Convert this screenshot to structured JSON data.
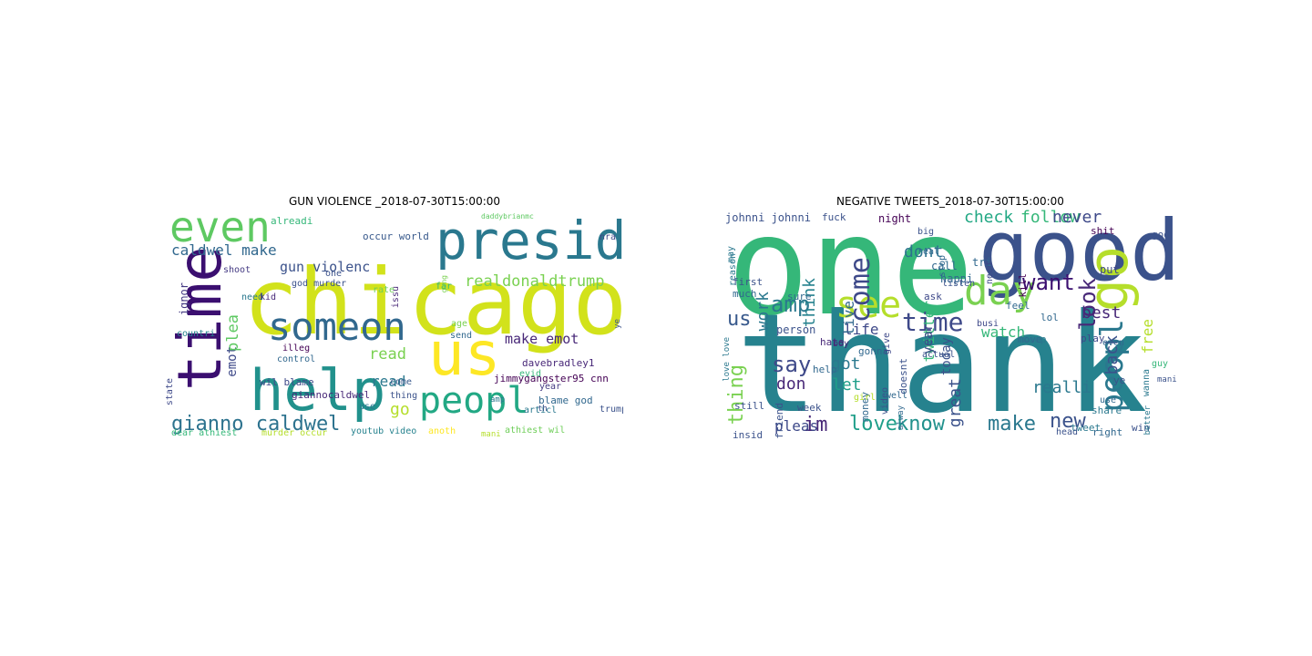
{
  "left": {
    "title": "GUN VIOLENCE _2018-07-30T15:00:00",
    "words": [
      {
        "t": "chicago",
        "c": "#d2e21b"
      },
      {
        "t": "presid",
        "c": "#2a788e"
      },
      {
        "t": "even",
        "c": "#5ec962"
      },
      {
        "t": "time",
        "c": "#3b0f70"
      },
      {
        "t": "someon",
        "c": "#31688e"
      },
      {
        "t": "help",
        "c": "#21918c"
      },
      {
        "t": "us",
        "c": "#fde725"
      },
      {
        "t": "peopl",
        "c": "#22a884"
      },
      {
        "t": "gianno caldwel",
        "c": "#2c728e"
      },
      {
        "t": "caldwel make",
        "c": "#31688e"
      },
      {
        "t": "gun violenc",
        "c": "#3b528b"
      },
      {
        "t": "realdonaldtrump",
        "c": "#7ad151"
      },
      {
        "t": "make emot",
        "c": "#482878"
      },
      {
        "t": "emot",
        "c": "#3e4989"
      },
      {
        "t": "plea",
        "c": "#5ec962"
      },
      {
        "t": "read",
        "c": "#7ad151"
      },
      {
        "t": "read",
        "c": "#2a788e"
      },
      {
        "t": "go",
        "c": "#b5de2b"
      },
      {
        "t": "ignor",
        "c": "#443a83"
      },
      {
        "t": "alreadi",
        "c": "#35b779"
      },
      {
        "t": "occur world",
        "c": "#38598c"
      },
      {
        "t": "nra",
        "c": "#3e4989"
      },
      {
        "t": "davebradley1",
        "c": "#482878"
      },
      {
        "t": "jimmygangster95 cnn",
        "c": "#440154"
      },
      {
        "t": "wil blame",
        "c": "#3e4989"
      },
      {
        "t": "giannocaldwel",
        "c": "#482878"
      },
      {
        "t": "blame god",
        "c": "#31688e"
      },
      {
        "t": "dear athiest",
        "c": "#35b779"
      },
      {
        "t": "murder occur",
        "c": "#b5de2b"
      },
      {
        "t": "youtub video",
        "c": "#26828e"
      },
      {
        "t": "anoth",
        "c": "#fde725"
      },
      {
        "t": "athiest wil",
        "c": "#6ece58"
      },
      {
        "t": "articl",
        "c": "#2a788e"
      },
      {
        "t": "trump",
        "c": "#3b528b"
      },
      {
        "t": "evid",
        "c": "#35b779"
      },
      {
        "t": "year",
        "c": "#443a83"
      },
      {
        "t": "come",
        "c": "#38598c"
      },
      {
        "t": "thing",
        "c": "#3b528b"
      },
      {
        "t": "send",
        "c": "#31688e"
      },
      {
        "t": "age",
        "c": "#7ad151"
      },
      {
        "t": "issu",
        "c": "#482878"
      },
      {
        "t": "far",
        "c": "#35b779"
      },
      {
        "t": "rate",
        "c": "#6ece58"
      },
      {
        "t": "god murder",
        "c": "#3b528b"
      },
      {
        "t": "need",
        "c": "#2a788e"
      },
      {
        "t": "one",
        "c": "#3b528b"
      },
      {
        "t": "shoot",
        "c": "#443a83"
      },
      {
        "t": "kid",
        "c": "#482878"
      },
      {
        "t": "countri",
        "c": "#26828e"
      },
      {
        "t": "illeg",
        "c": "#440154"
      },
      {
        "t": "control",
        "c": "#31688e"
      },
      {
        "t": "state",
        "c": "#3e4989"
      },
      {
        "t": "use",
        "c": "#2a788e"
      },
      {
        "t": "mani",
        "c": "#b5de2b"
      },
      {
        "t": "amp",
        "c": "#2a788e"
      },
      {
        "t": "th",
        "c": "#3b528b"
      },
      {
        "t": "ye",
        "c": "#3b528b"
      },
      {
        "t": "gang",
        "c": "#7ad151"
      },
      {
        "t": "daddybrianmc",
        "c": "#5ec962"
      }
    ]
  },
  "right": {
    "title": "NEGATIVE TWEETS_2018-07-30T15:00:00",
    "words": [
      {
        "t": "one",
        "c": "#35b779"
      },
      {
        "t": "thank",
        "c": "#26828e"
      },
      {
        "t": "good",
        "c": "#3b528b"
      },
      {
        "t": "go",
        "c": "#b5de2b"
      },
      {
        "t": "day",
        "c": "#7ad151"
      },
      {
        "t": "time",
        "c": "#3e4989"
      },
      {
        "t": "see",
        "c": "#b5de2b"
      },
      {
        "t": "peopl",
        "c": "#2a788e"
      },
      {
        "t": "come",
        "c": "#3e4989"
      },
      {
        "t": "want",
        "c": "#3b0f70"
      },
      {
        "t": "look",
        "c": "#482878"
      },
      {
        "t": "amp",
        "c": "#2a788e"
      },
      {
        "t": "us",
        "c": "#38598c"
      },
      {
        "t": "check",
        "c": "#22a884"
      },
      {
        "t": "follow",
        "c": "#35b779"
      },
      {
        "t": "never",
        "c": "#3e4989"
      },
      {
        "t": "love",
        "c": "#1f9e89"
      },
      {
        "t": "know",
        "c": "#21918c"
      },
      {
        "t": "make",
        "c": "#2a788e"
      },
      {
        "t": "new",
        "c": "#3b528b"
      },
      {
        "t": "im",
        "c": "#482878"
      },
      {
        "t": "say",
        "c": "#3e4989"
      },
      {
        "t": "pleas",
        "c": "#3e4989"
      },
      {
        "t": "thing",
        "c": "#7ad151"
      },
      {
        "t": "think",
        "c": "#26828e"
      },
      {
        "t": "twitter",
        "c": "#35b779"
      },
      {
        "t": "dont",
        "c": "#2c728e"
      },
      {
        "t": "watch",
        "c": "#35b779"
      },
      {
        "t": "best",
        "c": "#482878"
      },
      {
        "t": "free",
        "c": "#b5de2b"
      },
      {
        "t": "realli",
        "c": "#2a788e"
      },
      {
        "t": "back",
        "c": "#3b528b"
      },
      {
        "t": "great",
        "c": "#3b528b"
      },
      {
        "t": "got",
        "c": "#2a788e"
      },
      {
        "t": "let",
        "c": "#1f9e89"
      },
      {
        "t": "don",
        "c": "#482878"
      },
      {
        "t": "work",
        "c": "#2a788e"
      },
      {
        "t": "life",
        "c": "#3e4989"
      },
      {
        "t": "live",
        "c": "#31688e"
      },
      {
        "t": "today",
        "c": "#3b528b"
      },
      {
        "t": "year",
        "c": "#3e4989"
      },
      {
        "t": "person",
        "c": "#3b528b"
      },
      {
        "t": "happi",
        "c": "#31688e"
      },
      {
        "t": "put",
        "c": "#3e4989"
      },
      {
        "t": "tri",
        "c": "#31688e"
      },
      {
        "t": "call",
        "c": "#31688e"
      },
      {
        "t": "night",
        "c": "#440154"
      },
      {
        "t": "fuck",
        "c": "#3b528b"
      },
      {
        "t": "johnni johnni",
        "c": "#3b528b"
      },
      {
        "t": "keep",
        "c": "#2a788e"
      },
      {
        "t": "lol",
        "c": "#31688e"
      },
      {
        "t": "ye",
        "c": "#3b528b"
      },
      {
        "t": "shit",
        "c": "#440154"
      },
      {
        "t": "god",
        "c": "#3b528b"
      },
      {
        "t": "kill",
        "c": "#440154"
      },
      {
        "t": "feel",
        "c": "#31688e"
      },
      {
        "t": "play",
        "c": "#3e4989"
      },
      {
        "t": "tweet",
        "c": "#2a788e"
      },
      {
        "t": "share",
        "c": "#2a788e"
      },
      {
        "t": "right",
        "c": "#31688e"
      },
      {
        "t": "win",
        "c": "#3b528b"
      },
      {
        "t": "better",
        "c": "#2a788e"
      },
      {
        "t": "guy",
        "c": "#35b779"
      },
      {
        "t": "wanna",
        "c": "#2a788e"
      },
      {
        "t": "hate",
        "c": "#482878"
      },
      {
        "t": "help",
        "c": "#31688e"
      },
      {
        "t": "ask",
        "c": "#3e4989"
      },
      {
        "t": "listen",
        "c": "#3b528b"
      },
      {
        "t": "sure",
        "c": "#31688e"
      },
      {
        "t": "much",
        "c": "#31688e"
      },
      {
        "t": "first",
        "c": "#3b528b"
      },
      {
        "t": "may",
        "c": "#2a788e"
      },
      {
        "t": "reason",
        "c": "#2a788e"
      },
      {
        "t": "need",
        "c": "#3e4989"
      },
      {
        "t": "stop",
        "c": "#31688e"
      },
      {
        "t": "gonna",
        "c": "#31688e"
      },
      {
        "t": "doesnt",
        "c": "#3b528b"
      },
      {
        "t": "actual",
        "c": "#3b528b"
      },
      {
        "t": "friend",
        "c": "#3b528b"
      },
      {
        "t": "week",
        "c": "#3b528b"
      },
      {
        "t": "money",
        "c": "#31688e"
      },
      {
        "t": "still",
        "c": "#3b528b"
      },
      {
        "t": "insid",
        "c": "#3b528b"
      },
      {
        "t": "even",
        "c": "#31688e"
      },
      {
        "t": "use",
        "c": "#31688e"
      },
      {
        "t": "head",
        "c": "#3b528b"
      },
      {
        "t": "move",
        "c": "#31688e"
      },
      {
        "t": "busi",
        "c": "#3e4989"
      },
      {
        "t": "give",
        "c": "#3e4989"
      },
      {
        "t": "video",
        "c": "#3b528b"
      },
      {
        "t": "big",
        "c": "#3b528b"
      },
      {
        "t": "real",
        "c": "#31688e"
      },
      {
        "t": "love love",
        "c": "#2a788e"
      },
      {
        "t": "mani",
        "c": "#3b528b"
      },
      {
        "t": "boy",
        "c": "#482878"
      },
      {
        "t": "girl",
        "c": "#b5de2b"
      },
      {
        "t": "well",
        "c": "#31688e"
      },
      {
        "t": "alway",
        "c": "#31688e"
      }
    ]
  }
}
